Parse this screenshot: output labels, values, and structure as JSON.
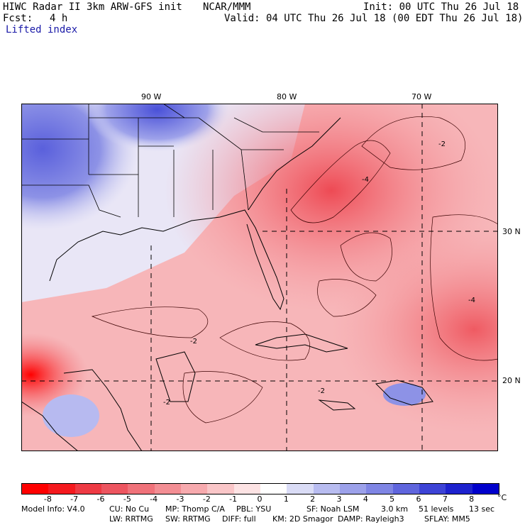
{
  "header": {
    "model_title": "HIWC Radar II 3km ARW-GFS init",
    "org": "NCAR/MMM",
    "init": "Init: 00 UTC Thu 26 Jul 18",
    "fcst_label": "Fcst:",
    "fcst_value": "4 h",
    "valid": "Valid: 04 UTC Thu 26 Jul 18 (00 EDT Thu 26 Jul 18)",
    "field": "Lifted index"
  },
  "map": {
    "top_lon_labels": [
      "90 W",
      "80 W",
      "70 W"
    ],
    "right_lat_labels": [
      "30 N",
      "20 N"
    ],
    "contour_labels": [
      "-2",
      "-2",
      "-2",
      "-2",
      "-4",
      "-4"
    ]
  },
  "colorbar": {
    "labels": [
      "-8",
      "-7",
      "-6",
      "-5",
      "-4",
      "-3",
      "-2",
      "-1",
      "0",
      "1",
      "2",
      "3",
      "4",
      "5",
      "6",
      "7",
      "8"
    ],
    "unit": "°C",
    "colors": [
      "#ff0000",
      "#f5191e",
      "#ee3a44",
      "#ed5560",
      "#f0727a",
      "#f38e94",
      "#f7aaae",
      "#fac6c8",
      "#fde3e4",
      "#ffffff",
      "#dadcf6",
      "#b8bcf0",
      "#9ca1ea",
      "#7f85e4",
      "#5f65dd",
      "#3d43d6",
      "#1d22ce",
      "#0000cc"
    ]
  },
  "footer": {
    "line1": [
      "Model Info: V4.0",
      "CU: No Cu",
      "MP: Thomp C/A",
      "PBL: YSU",
      "SF: Noah LSM",
      "3.0 km",
      "51 levels",
      "13 sec"
    ],
    "line2": [
      "LW: RRTMG",
      "SW: RRTMG",
      "DIFF: full",
      "KM: 2D Smagor",
      "DAMP: Rayleigh3",
      "SFLAY: MM5"
    ]
  }
}
